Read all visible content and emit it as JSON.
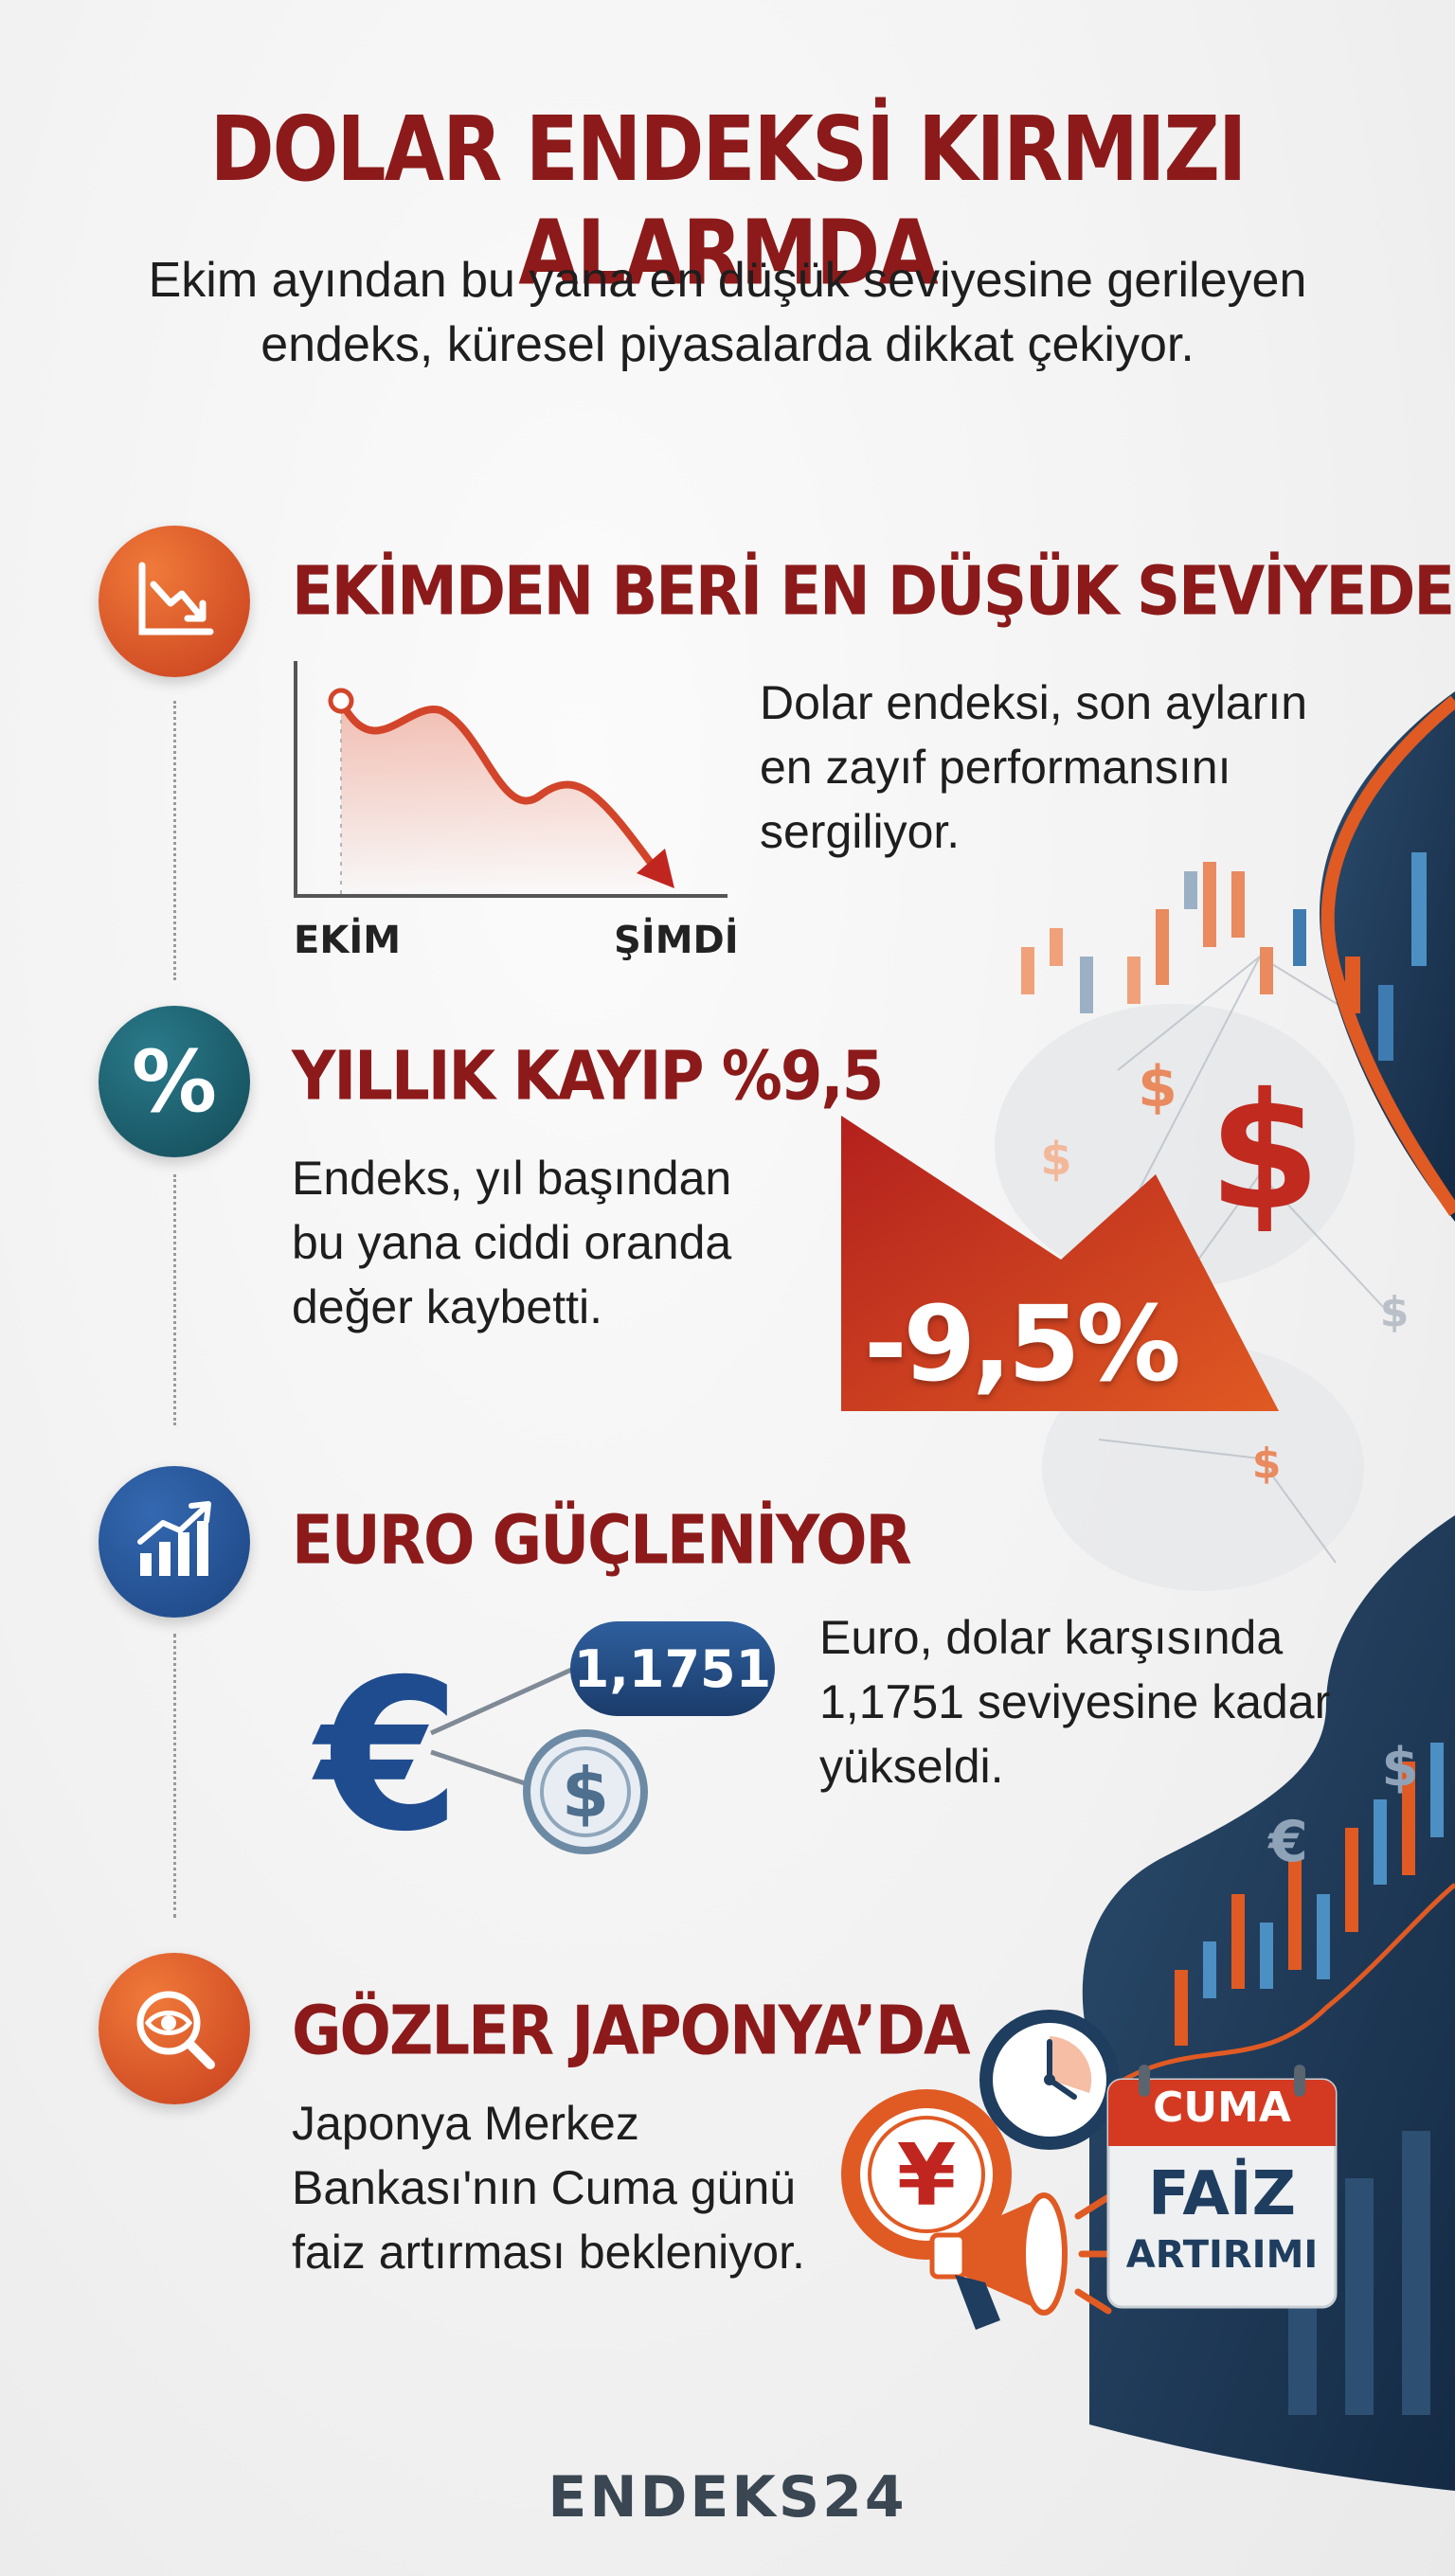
{
  "header": {
    "title": "DOLAR ENDEKSİ KIRMIZI ALARMDA",
    "subtitle_line1": "Ekim ayından bu yana en düşük seviyesine gerileyen",
    "subtitle_line2": "endeks, küresel piyasalarda dikkat çekiyor."
  },
  "sections": [
    {
      "icon": "trend-down-icon",
      "heading": "EKİMDEN BERİ EN DÜŞÜK SEVİYEDE",
      "text_line1": "Dolar endeksi, son ayların",
      "text_line2": "en zayıf performansını",
      "text_line3": "sergiliyor.",
      "chart_label_start": "EKİM",
      "chart_label_end": "ŞİMDİ"
    },
    {
      "icon": "percent-icon",
      "heading": "YILLIK KAYIP %9,5",
      "text_line1": "Endeks, yıl başından",
      "text_line2": "bu yana ciddi oranda",
      "text_line3": "değer kaybetti.",
      "badge": "-9,5%"
    },
    {
      "icon": "bar-chart-up-icon",
      "heading": "EURO GÜÇLENİYOR",
      "text_line1": "Euro, dolar karşısında",
      "text_line2": "1,1751 seviyesine kadar",
      "text_line3": "yükseldi.",
      "rate": "1,1751"
    },
    {
      "icon": "eye-magnifier-icon",
      "heading": "GÖZLER JAPONYA’DA",
      "text_line1": "Japonya Merkez",
      "text_line2": "Bankası'nın Cuma günü",
      "text_line3": "faiz artırması bekleniyor.",
      "calendar_day": "CUMA",
      "calendar_title": "FAİZ",
      "calendar_sub": "ARTIRIMI"
    }
  ],
  "footer": {
    "brand": "ENDEKS24"
  },
  "colors": {
    "dark_red": "#8c1a1a",
    "orange": "#e05a23",
    "navy": "#1f3d5e",
    "teal": "#1c5a6a",
    "blue": "#2a5597"
  }
}
